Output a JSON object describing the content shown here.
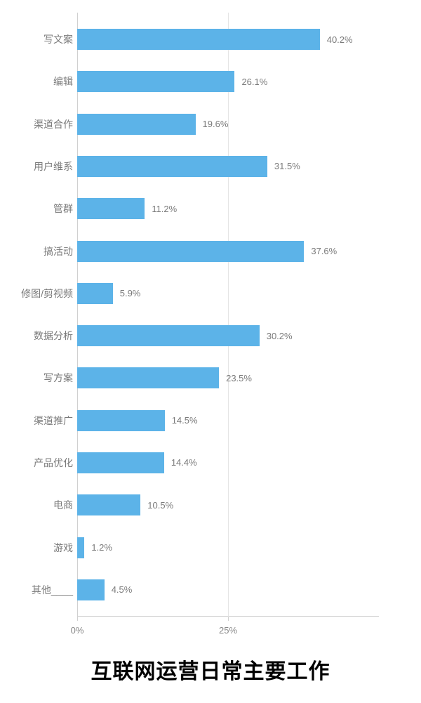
{
  "chart": {
    "type": "horizontal-bar",
    "title": "互联网运营日常主要工作",
    "title_fontsize": 30,
    "title_color": "#000000",
    "background_color": "#ffffff",
    "bar_color": "#5cb3e8",
    "grid_color": "#e5e5e5",
    "axis_color": "#d0d0d0",
    "label_color": "#7a7a7a",
    "value_label_color": "#7a7a7a",
    "x_axis": {
      "min": 0,
      "max": 50,
      "ticks": [
        {
          "value": 0,
          "label": "0%"
        },
        {
          "value": 25,
          "label": "25%"
        }
      ]
    },
    "categories": [
      {
        "label": "写文案",
        "value": 40.2,
        "value_label": "40.2%"
      },
      {
        "label": "编辑",
        "value": 26.1,
        "value_label": "26.1%"
      },
      {
        "label": "渠道合作",
        "value": 19.6,
        "value_label": "19.6%"
      },
      {
        "label": "用户维系",
        "value": 31.5,
        "value_label": "31.5%"
      },
      {
        "label": "管群",
        "value": 11.2,
        "value_label": "11.2%"
      },
      {
        "label": "搞活动",
        "value": 37.6,
        "value_label": "37.6%"
      },
      {
        "label": "修图/剪视频",
        "value": 5.9,
        "value_label": "5.9%"
      },
      {
        "label": "数据分析",
        "value": 30.2,
        "value_label": "30.2%"
      },
      {
        "label": "写方案",
        "value": 23.5,
        "value_label": "23.5%"
      },
      {
        "label": "渠道推广",
        "value": 14.5,
        "value_label": "14.5%"
      },
      {
        "label": "产品优化",
        "value": 14.4,
        "value_label": "14.4%"
      },
      {
        "label": "电商",
        "value": 10.5,
        "value_label": "10.5%"
      },
      {
        "label": "游戏",
        "value": 1.2,
        "value_label": "1.2%"
      },
      {
        "label": "其他____",
        "value": 4.5,
        "value_label": "4.5%"
      }
    ]
  }
}
